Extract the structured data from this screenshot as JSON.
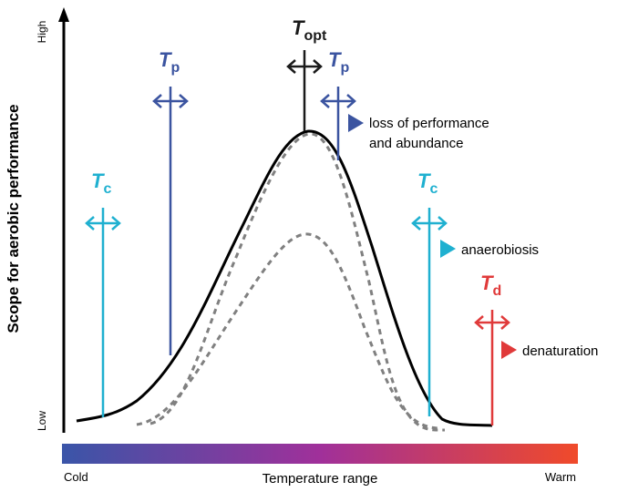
{
  "axis": {
    "y_label": "Scope for aerobic performance",
    "y_high": "High",
    "y_low": "Low",
    "x_label": "Temperature range",
    "x_cold": "Cold",
    "x_warm": "Warm"
  },
  "thresholds": {
    "symbol": "T",
    "opt_sub": "opt",
    "p_sub": "p",
    "c_sub": "c",
    "d_sub": "d"
  },
  "annotations": {
    "loss_line1": "loss of performance",
    "loss_line2": "and abundance",
    "anaerobiosis": "anaerobiosis",
    "denaturation": "denaturation"
  },
  "colors": {
    "opt": "#1a1a1a",
    "p": "#3b54a0",
    "c": "#1fb0d0",
    "d": "#e03a3a",
    "curve": "#000000",
    "dashed": "#808080",
    "gradient_cold": "#3a55a8",
    "gradient_mid": "#a0309a",
    "gradient_warm": "#f04a2a"
  }
}
